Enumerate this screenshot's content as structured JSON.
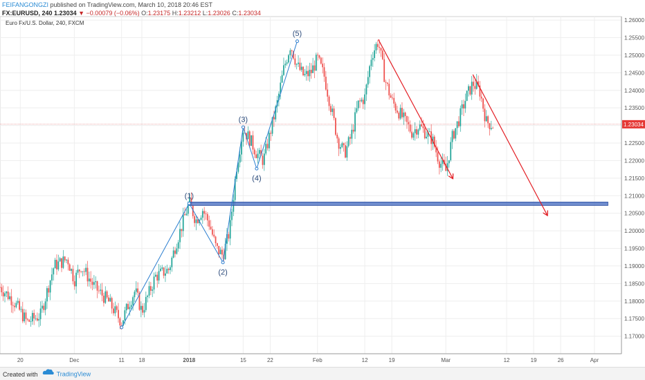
{
  "header": {
    "author": "FEIFANGONGZI",
    "published": "published on TradingView.com, March 10, 2018 20:46 EST",
    "symbol": "FX:EURUSD, 240",
    "last": "1.23034",
    "change_arrow": "▼",
    "change": "−0.00079 (−0.06%)",
    "o_label": "O:",
    "o": "1.23175",
    "h_label": "H:",
    "h": "1.23212",
    "l_label": "L:",
    "l": "1.23026",
    "c_label": "C:",
    "c": "1.23034"
  },
  "footer": {
    "created_with": "Created with",
    "brand": "TradingView",
    "icon": "tradingview-cloud-icon"
  },
  "colors": {
    "up": "#26a69a",
    "down": "#ef5350",
    "wave": "#2a7dcf",
    "arrow": "#e31e24",
    "zone": "#4a6fc1",
    "price_line": "#e57373"
  },
  "chart_data": {
    "type": "candlestick",
    "title": "Euro Fx/U.S. Dollar, 240, FXCM",
    "ylim": [
      1.165,
      1.261
    ],
    "y_ticks": [
      "1.26000",
      "1.25500",
      "1.25000",
      "1.24500",
      "1.24000",
      "1.23500",
      "1.23000",
      "1.22500",
      "1.22000",
      "1.21500",
      "1.21000",
      "1.20500",
      "1.20000",
      "1.19500",
      "1.19000",
      "1.18500",
      "1.18000",
      "1.17500",
      "1.17000"
    ],
    "x_ticks": [
      "20",
      "Dec",
      "11",
      "18",
      "2018",
      "15",
      "22",
      "Feb",
      "12",
      "19",
      "Mar",
      "12",
      "19",
      "26",
      "Apr"
    ],
    "x_tick_pos": [
      1,
      9,
      16,
      19,
      26,
      34,
      38,
      45,
      52,
      56,
      64,
      73,
      77,
      81,
      86
    ],
    "x_range": [
      -2,
      90
    ],
    "price_label": "1.23034",
    "price": 1.23034,
    "trend_close": [
      [
        -2,
        1.184
      ],
      [
        0,
        1.18
      ],
      [
        2,
        1.174
      ],
      [
        4,
        1.176
      ],
      [
        6,
        1.19
      ],
      [
        8,
        1.192
      ],
      [
        9,
        1.186
      ],
      [
        10,
        1.19
      ],
      [
        12,
        1.184
      ],
      [
        14,
        1.18
      ],
      [
        15,
        1.177
      ],
      [
        16,
        1.174
      ],
      [
        17,
        1.179
      ],
      [
        18,
        1.183
      ],
      [
        19,
        1.177
      ],
      [
        21,
        1.187
      ],
      [
        23,
        1.189
      ],
      [
        24,
        1.196
      ],
      [
        26,
        1.208
      ],
      [
        27,
        1.203
      ],
      [
        28,
        1.206
      ],
      [
        29,
        1.202
      ],
      [
        30,
        1.195
      ],
      [
        31,
        1.193
      ],
      [
        32,
        1.2
      ],
      [
        33,
        1.218
      ],
      [
        34,
        1.229
      ],
      [
        35,
        1.226
      ],
      [
        36,
        1.222
      ],
      [
        37,
        1.22
      ],
      [
        38,
        1.228
      ],
      [
        39,
        1.236
      ],
      [
        40,
        1.246
      ],
      [
        41,
        1.253
      ],
      [
        42,
        1.247
      ],
      [
        43,
        1.244
      ],
      [
        44,
        1.245
      ],
      [
        45,
        1.249
      ],
      [
        46,
        1.244
      ],
      [
        47,
        1.235
      ],
      [
        48,
        1.226
      ],
      [
        49,
        1.222
      ],
      [
        50,
        1.227
      ],
      [
        51,
        1.236
      ],
      [
        52,
        1.238
      ],
      [
        53,
        1.25
      ],
      [
        54,
        1.254
      ],
      [
        55,
        1.243
      ],
      [
        56,
        1.237
      ],
      [
        58,
        1.231
      ],
      [
        59,
        1.228
      ],
      [
        60,
        1.23
      ],
      [
        62,
        1.226
      ],
      [
        63,
        1.22
      ],
      [
        64,
        1.217
      ],
      [
        65,
        1.227
      ],
      [
        66,
        1.232
      ],
      [
        67,
        1.238
      ],
      [
        68,
        1.242
      ],
      [
        69,
        1.24
      ],
      [
        70,
        1.231
      ],
      [
        71,
        1.23
      ]
    ],
    "wave_points": [
      [
        16,
        1.1725
      ],
      [
        26,
        1.2078
      ],
      [
        31,
        1.191
      ],
      [
        34,
        1.2295
      ],
      [
        36,
        1.2177
      ],
      [
        42,
        1.254
      ]
    ],
    "wave_labels": [
      "(1)",
      "(2)",
      "(3)",
      "(4)",
      "(5)"
    ],
    "wave_label_points": [
      [
        26,
        1.2089
      ],
      [
        31,
        1.1895
      ],
      [
        34,
        1.2306
      ],
      [
        36,
        1.2162
      ],
      [
        42,
        1.2551
      ]
    ],
    "arrows": [
      {
        "from": [
          54,
          1.2545
        ],
        "to": [
          65,
          1.215
        ]
      },
      {
        "from": [
          68,
          1.2445
        ],
        "to": [
          79,
          1.2045
        ]
      }
    ],
    "zone": {
      "x_from": 26,
      "x_to": 88,
      "y_low": 1.2074,
      "y_high": 1.2082
    }
  }
}
